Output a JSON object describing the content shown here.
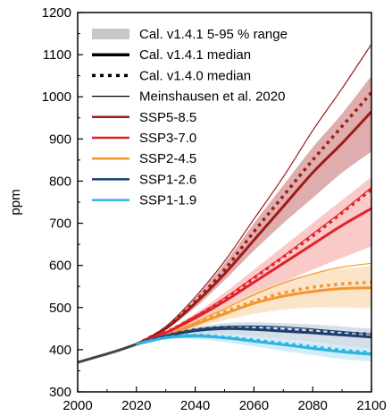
{
  "chart_data": {
    "type": "line",
    "title": "",
    "xlabel": "",
    "ylabel": "ppm",
    "xlim": [
      2000,
      2100
    ],
    "ylim": [
      300,
      1200
    ],
    "xticks": [
      2000,
      2020,
      2040,
      2060,
      2080,
      2100
    ],
    "yticks": [
      300,
      400,
      500,
      600,
      700,
      800,
      900,
      1000,
      1100,
      1200
    ],
    "grid": false,
    "legend_position": "top-left",
    "legend": [
      {
        "label": "Cal. v1.4.1 5-95 % range",
        "kind": "band",
        "color": "#c8c8c8"
      },
      {
        "label": "Cal. v1.4.1 median",
        "kind": "thick",
        "color": "#000000"
      },
      {
        "label": "Cal. v1.4.0 median",
        "kind": "dotted",
        "color": "#000000"
      },
      {
        "label": "Meinshausen et al. 2020",
        "kind": "thin",
        "color": "#000000"
      },
      {
        "label": "SSP5-8.5",
        "kind": "scenario",
        "color": "#9e1b1b"
      },
      {
        "label": "SSP3-7.0",
        "kind": "scenario",
        "color": "#e3212b"
      },
      {
        "label": "SSP2-4.5",
        "kind": "scenario",
        "color": "#f2962e"
      },
      {
        "label": "SSP1-2.6",
        "kind": "scenario",
        "color": "#1c3f6e"
      },
      {
        "label": "SSP1-1.9",
        "kind": "scenario",
        "color": "#2fb3e3"
      }
    ],
    "history": {
      "x": [
        2000,
        2005,
        2010,
        2015,
        2020
      ],
      "y": [
        370,
        380,
        390,
        401,
        413
      ]
    },
    "series": [
      {
        "name": "SSP5-8.5",
        "color": "#9e1b1b",
        "band_color": "#d28a8a",
        "x": [
          2020,
          2030,
          2040,
          2050,
          2060,
          2070,
          2080,
          2090,
          2100
        ],
        "median_v141": [
          413,
          450,
          510,
          580,
          660,
          740,
          820,
          890,
          965
        ],
        "median_v140": [
          413,
          452,
          515,
          590,
          680,
          765,
          850,
          930,
          1010
        ],
        "meinshausen": [
          413,
          455,
          525,
          610,
          710,
          810,
          920,
          1020,
          1125
        ],
        "low": [
          413,
          448,
          500,
          565,
          635,
          700,
          760,
          820,
          870
        ],
        "high": [
          413,
          455,
          522,
          605,
          700,
          790,
          880,
          960,
          1050
        ]
      },
      {
        "name": "SSP3-7.0",
        "color": "#e3212b",
        "band_color": "#f6b3b1",
        "x": [
          2020,
          2030,
          2040,
          2050,
          2060,
          2070,
          2080,
          2090,
          2100
        ],
        "median_v141": [
          413,
          440,
          475,
          515,
          560,
          605,
          650,
          695,
          735
        ],
        "median_v140": [
          413,
          441,
          478,
          520,
          570,
          620,
          670,
          725,
          780
        ],
        "meinshausen": [
          413,
          442,
          480,
          523,
          572,
          622,
          675,
          728,
          785
        ],
        "low": [
          413,
          438,
          465,
          498,
          530,
          560,
          590,
          618,
          645
        ],
        "high": [
          413,
          443,
          486,
          535,
          590,
          645,
          700,
          755,
          810
        ]
      },
      {
        "name": "SSP2-4.5",
        "color": "#f2962e",
        "band_color": "#f9d8b0",
        "x": [
          2020,
          2030,
          2040,
          2050,
          2060,
          2070,
          2080,
          2090,
          2100
        ],
        "median_v141": [
          413,
          433,
          460,
          485,
          510,
          527,
          538,
          545,
          547
        ],
        "median_v140": [
          413,
          434,
          462,
          490,
          515,
          535,
          548,
          556,
          560
        ],
        "meinshausen": [
          413,
          435,
          465,
          497,
          530,
          558,
          580,
          596,
          605
        ],
        "low": [
          413,
          430,
          452,
          470,
          485,
          495,
          500,
          500,
          498
        ],
        "high": [
          413,
          436,
          470,
          504,
          538,
          562,
          580,
          592,
          598
        ]
      },
      {
        "name": "SSP1-2.6",
        "color": "#1c3f6e",
        "band_color": "#c5d0dd",
        "x": [
          2020,
          2030,
          2040,
          2050,
          2060,
          2070,
          2080,
          2090,
          2100
        ],
        "median_v141": [
          413,
          432,
          445,
          450,
          448,
          444,
          440,
          435,
          430
        ],
        "median_v140": [
          413,
          433,
          447,
          453,
          452,
          448,
          444,
          440,
          437
        ],
        "meinshausen": [
          413,
          434,
          448,
          455,
          456,
          454,
          449,
          443,
          437
        ],
        "low": [
          413,
          429,
          436,
          437,
          432,
          425,
          418,
          410,
          403
        ],
        "high": [
          413,
          435,
          453,
          463,
          465,
          463,
          460,
          455,
          450
        ]
      },
      {
        "name": "SSP1-1.9",
        "color": "#2fb3e3",
        "band_color": "#bde5f5",
        "x": [
          2020,
          2030,
          2040,
          2050,
          2060,
          2070,
          2080,
          2090,
          2100
        ],
        "median_v141": [
          413,
          428,
          432,
          428,
          420,
          412,
          403,
          395,
          389
        ],
        "median_v140": [
          413,
          429,
          434,
          430,
          423,
          415,
          407,
          399,
          393
        ],
        "meinshausen": [
          413,
          430,
          435,
          430,
          422,
          413,
          405,
          397,
          392
        ],
        "low": [
          413,
          425,
          425,
          418,
          408,
          397,
          387,
          378,
          372
        ],
        "high": [
          413,
          432,
          440,
          438,
          432,
          425,
          417,
          410,
          405
        ]
      }
    ]
  }
}
